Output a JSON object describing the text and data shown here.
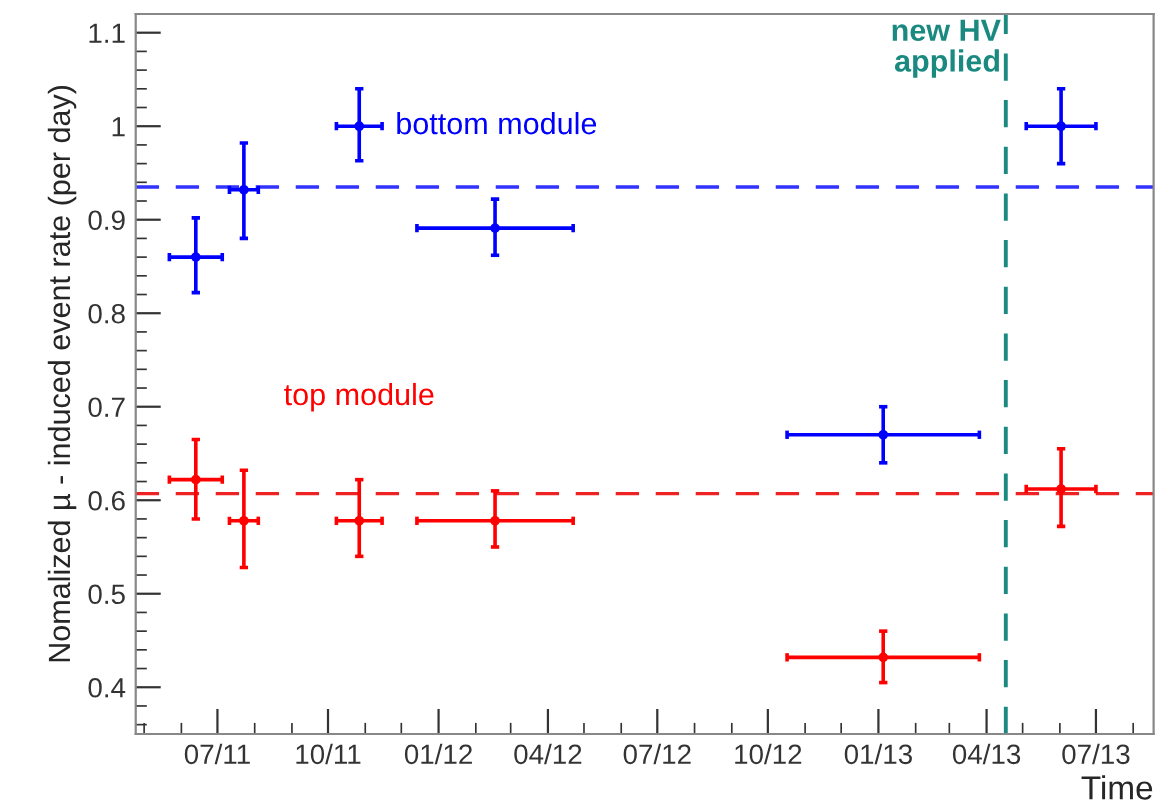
{
  "chart_data": {
    "type": "scatter",
    "xlabel": "Time",
    "ylabel": "Nomalized µ - induced event rate (per day)",
    "marker": "circle",
    "grid": false,
    "xlim": [
      "2011-04-24",
      "2013-08-18"
    ],
    "xticks": [
      {
        "value": "2011-07-01",
        "label": "07/11"
      },
      {
        "value": "2011-10-01",
        "label": "10/11"
      },
      {
        "value": "2012-01-01",
        "label": "01/12"
      },
      {
        "value": "2012-04-01",
        "label": "04/12"
      },
      {
        "value": "2012-07-01",
        "label": "07/12"
      },
      {
        "value": "2012-10-01",
        "label": "10/12"
      },
      {
        "value": "2013-01-01",
        "label": "01/13"
      },
      {
        "value": "2013-04-01",
        "label": "04/13"
      },
      {
        "value": "2013-07-01",
        "label": "07/13"
      }
    ],
    "ylim": [
      0.35,
      1.12
    ],
    "yticks": [
      0.4,
      0.5,
      0.6,
      0.7,
      0.8,
      0.9,
      1,
      1.1
    ],
    "series": [
      {
        "name": "bottom module",
        "color": "#0000ff",
        "x": [
          "2011-06-13",
          "2011-07-23",
          "2011-10-27",
          "2012-02-17",
          "2013-01-05",
          "2013-06-02"
        ],
        "values": [
          0.86,
          0.932,
          1.0,
          0.891,
          0.67,
          1.0
        ],
        "errors": [
          [
            0.822,
            0.902
          ],
          [
            0.88,
            0.982
          ],
          [
            0.963,
            1.04
          ],
          [
            0.862,
            0.922
          ],
          [
            0.64,
            0.7
          ],
          [
            0.96,
            1.04
          ]
        ],
        "xerrors": [
          22,
          12,
          19,
          65,
          80,
          29
        ]
      },
      {
        "name": "top module",
        "color": "#ff0000",
        "x": [
          "2011-06-13",
          "2011-07-23",
          "2011-10-27",
          "2012-02-17",
          "2013-01-05",
          "2013-06-02"
        ],
        "values": [
          0.622,
          0.578,
          0.578,
          0.578,
          0.432,
          0.612
        ],
        "errors": [
          [
            0.58,
            0.665
          ],
          [
            0.528,
            0.632
          ],
          [
            0.54,
            0.622
          ],
          [
            0.55,
            0.61
          ],
          [
            0.405,
            0.46
          ],
          [
            0.572,
            0.655
          ]
        ],
        "xerrors": [
          22,
          12,
          19,
          65,
          80,
          29
        ]
      }
    ],
    "ref_lines": [
      {
        "axis": "y",
        "value": 0.935,
        "color": "#3333ff",
        "line_style": "dashed"
      },
      {
        "axis": "y",
        "value": 0.607,
        "color": "#ee2222",
        "line_style": "dashed"
      },
      {
        "axis": "x",
        "value": "2013-04-17",
        "label": "new HV\napplied",
        "color": "#1a8a80",
        "line_style": "dashed"
      }
    ]
  }
}
